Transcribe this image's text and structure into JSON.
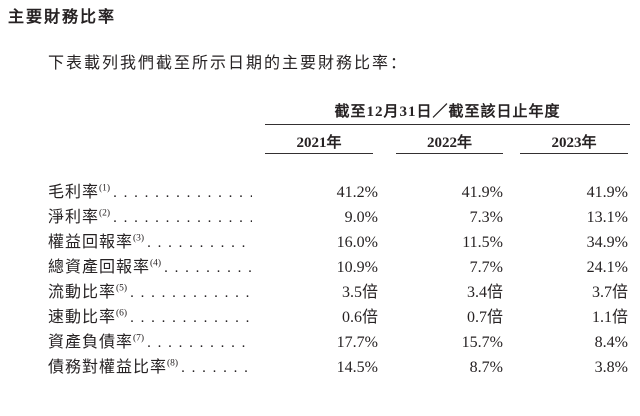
{
  "page": {
    "title": "主要財務比率",
    "intro": "下表載列我們截至所示日期的主要財務比率："
  },
  "table": {
    "span_header": "截至12月31日／截至該日止年度",
    "columns": [
      "2021年",
      "2022年",
      "2023年"
    ],
    "rows": [
      {
        "label": "毛利率",
        "note": "(1)",
        "values": [
          "41.2%",
          "41.9%",
          "41.9%"
        ]
      },
      {
        "label": "淨利率",
        "note": "(2)",
        "values": [
          "9.0%",
          "7.3%",
          "13.1%"
        ]
      },
      {
        "label": "權益回報率",
        "note": "(3)",
        "values": [
          "16.0%",
          "11.5%",
          "34.9%"
        ]
      },
      {
        "label": "總資產回報率",
        "note": "(4)",
        "values": [
          "10.9%",
          "7.7%",
          "24.1%"
        ]
      },
      {
        "label": "流動比率",
        "note": "(5)",
        "values": [
          "3.5倍",
          "3.4倍",
          "3.7倍"
        ]
      },
      {
        "label": "速動比率",
        "note": "(6)",
        "values": [
          "0.6倍",
          "0.7倍",
          "1.1倍"
        ]
      },
      {
        "label": "資產負債率",
        "note": "(7)",
        "values": [
          "17.7%",
          "15.7%",
          "8.4%"
        ]
      },
      {
        "label": "債務對權益比率",
        "note": "(8)",
        "values": [
          "14.5%",
          "8.7%",
          "3.8%"
        ]
      }
    ]
  },
  "colors": {
    "text": "#262223",
    "rule": "#343031",
    "background": "#ffffff"
  }
}
